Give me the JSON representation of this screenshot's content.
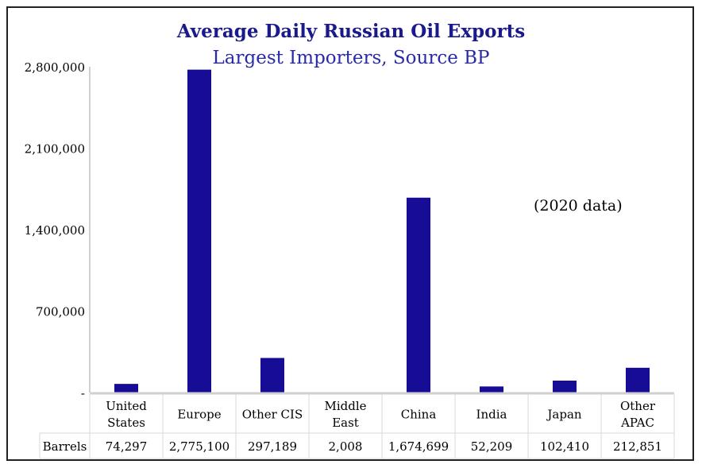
{
  "chart_data": {
    "type": "bar",
    "title": "Average Daily Russian Oil Exports",
    "subtitle": "Largest Importers, Source BP",
    "annotation": "(2020 data)",
    "categories": [
      [
        "United",
        "States"
      ],
      [
        "Europe"
      ],
      [
        "Other CIS"
      ],
      [
        "Middle",
        "East"
      ],
      [
        "China"
      ],
      [
        "India"
      ],
      [
        "Japan"
      ],
      [
        "Other",
        "APAC"
      ]
    ],
    "series": [
      {
        "name": "Barrels",
        "values": [
          74297,
          2775100,
          297189,
          2008,
          1674699,
          52209,
          102410,
          212851
        ]
      }
    ],
    "value_labels": [
      "74,297",
      "2,775,100",
      "297,189",
      "2,008",
      "1,674,699",
      "52,209",
      "102,410",
      "212,851"
    ],
    "yticks": [
      0,
      700000,
      1400000,
      2100000,
      2800000
    ],
    "ytick_labels": [
      "-",
      "700,000",
      "1,400,000",
      "2,100,000",
      "2,800,000"
    ],
    "ylim": [
      0,
      2800000
    ],
    "xlabel": "",
    "ylabel": "",
    "grid": false,
    "legend": "data table below chart",
    "bar_color": "#160c96"
  }
}
